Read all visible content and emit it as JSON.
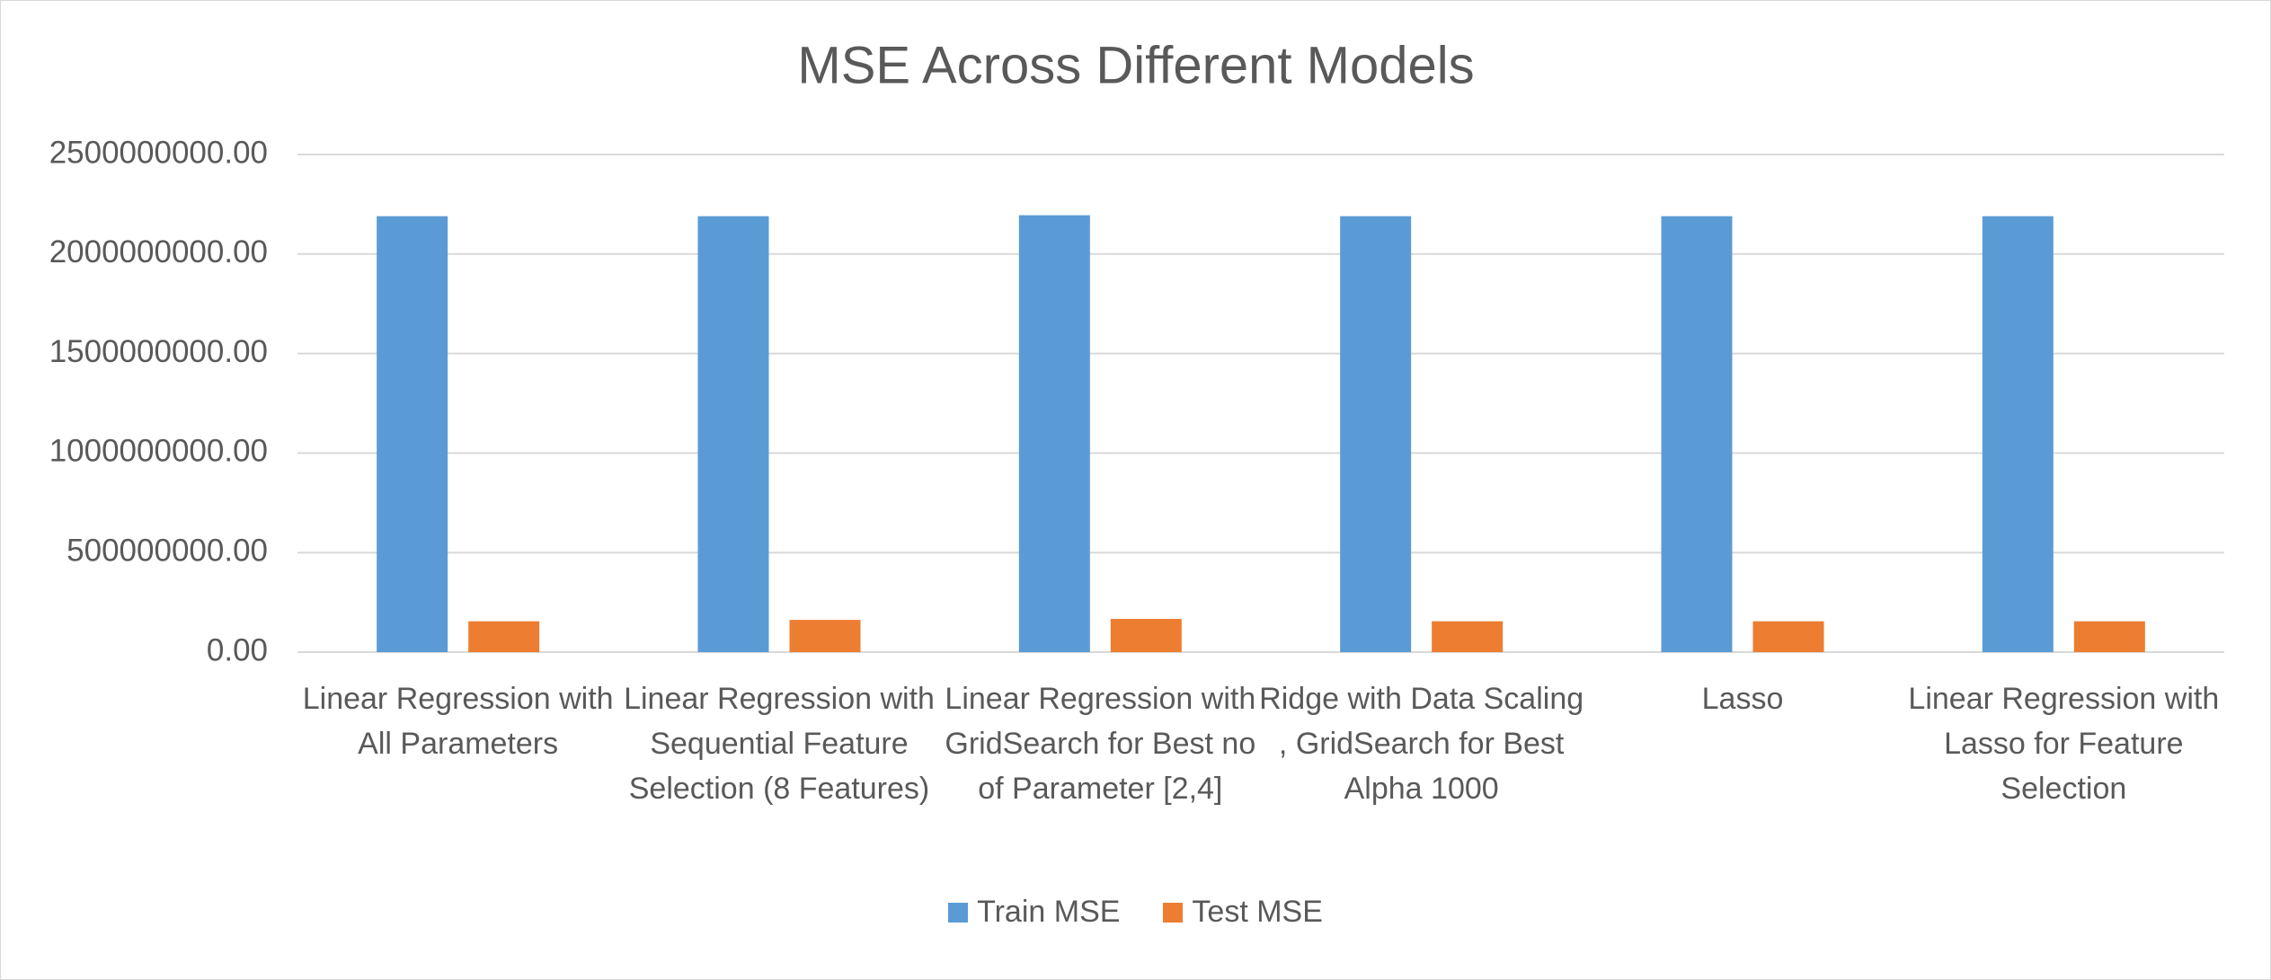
{
  "chart_data": {
    "type": "bar",
    "title": "MSE Across Different Models",
    "categories": [
      "Linear Regression with All Parameters",
      "Linear Regression with Sequential Feature Selection (8 Features)",
      "Linear Regression with GridSearch for Best no of Parameter [2,4]",
      "Ridge with Data Scaling , GridSearch for Best Alpha 1000",
      "Lasso",
      "Linear Regression with Lasso for Feature Selection"
    ],
    "series": [
      {
        "name": "Train MSE",
        "color": "#5b9bd5",
        "values": [
          2190000000,
          2190000000,
          2195000000,
          2190000000,
          2190000000,
          2190000000
        ]
      },
      {
        "name": "Test MSE",
        "color": "#ed7d31",
        "values": [
          155000000,
          162000000,
          167000000,
          155000000,
          155000000,
          155000000
        ]
      }
    ],
    "ylim": [
      0,
      2500000000
    ],
    "yticks": [
      {
        "value": 0,
        "label": "0.00"
      },
      {
        "value": 500000000,
        "label": "500000000.00"
      },
      {
        "value": 1000000000,
        "label": "1000000000.00"
      },
      {
        "value": 1500000000,
        "label": "1500000000.00"
      },
      {
        "value": 2000000000,
        "label": "2000000000.00"
      },
      {
        "value": 2500000000,
        "label": "2500000000.00"
      }
    ],
    "grid": true,
    "legend": "bottom"
  }
}
